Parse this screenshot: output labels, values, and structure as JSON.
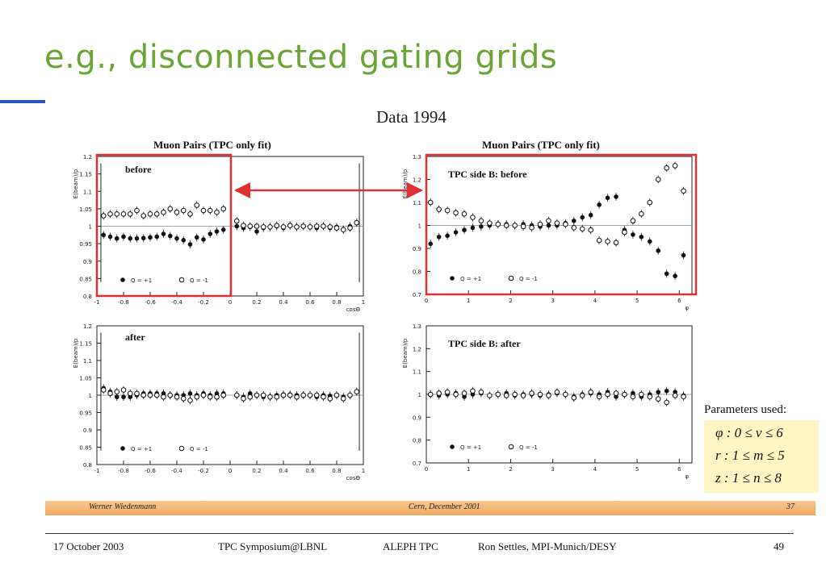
{
  "slide": {
    "title": "e.g., disconnected gating grids",
    "subtitle": "Data 1994"
  },
  "panels": {
    "tl": {
      "title": "Muon Pairs (TPC only fit)",
      "label": "before",
      "ylabel": "E(beam)/p",
      "xlabel": "cosΘ",
      "yticks": [
        "0.8",
        "0.85",
        "0.9",
        "0.95",
        "1",
        "1.05",
        "1.1",
        "1.15",
        "1.2"
      ],
      "xticks": [
        "-1",
        "-0.8",
        "-0.6",
        "-0.4",
        "-0.2",
        "0",
        "0.2",
        "0.4",
        "0.6",
        "0.8",
        "1"
      ],
      "legend_pos": "Q = +1",
      "legend_neg": "Q = -1"
    },
    "tr": {
      "title": "Muon Pairs (TPC only fit)",
      "label": "TPC side B: before",
      "ylabel": "E(beam)/p",
      "xlabel": "φ",
      "yticks": [
        "0.7",
        "0.8",
        "0.9",
        "1",
        "1.1",
        "1.2",
        "1.3"
      ],
      "xticks": [
        "0",
        "1",
        "2",
        "3",
        "4",
        "5",
        "6"
      ],
      "legend_pos": "Q = +1",
      "legend_neg": "Q = -1"
    },
    "bl": {
      "label": "after",
      "ylabel": "E(beam)/p",
      "xlabel": "cosΘ",
      "yticks": [
        "0.8",
        "0.85",
        "0.9",
        "0.95",
        "1",
        "1.05",
        "1.1",
        "1.15",
        "1.2"
      ],
      "xticks": [
        "-1",
        "-0.8",
        "-0.6",
        "-0.4",
        "-0.2",
        "0",
        "0.2",
        "0.4",
        "0.6",
        "0.8",
        "1"
      ],
      "legend_pos": "Q = +1",
      "legend_neg": "Q = -1"
    },
    "br": {
      "label": "TPC side B: after",
      "ylabel": "E(beam)/p",
      "xlabel": "φ",
      "yticks": [
        "0.7",
        "0.8",
        "0.9",
        "1",
        "1.1",
        "1.2",
        "1.3"
      ],
      "xticks": [
        "0",
        "1",
        "2",
        "3",
        "4",
        "5",
        "6"
      ],
      "legend_pos": "Q = +1",
      "legend_neg": "Q = -1"
    }
  },
  "params": {
    "title": "Parameters used:",
    "phi": "φ :  0 ≤ ν ≤ 6",
    "r": "r :  1 ≤ m ≤ 5",
    "z": "z :  1 ≤ n ≤ 8"
  },
  "band": {
    "left": "Werner Wiedenmann",
    "center": "Cern, December 2001",
    "right": "37"
  },
  "footer": {
    "date": "17 October 2003",
    "event": "TPC Symposium@LBNL",
    "project": "ALEPH TPC",
    "author": "Ron Settles, MPI-Munich/DESY",
    "page": "49"
  },
  "colors": {
    "title": "#6aa535",
    "highlight": "#e03030",
    "accent": "#2a56c6"
  },
  "chart_data": [
    {
      "type": "scatter",
      "id": "tl",
      "xlim": [
        -1,
        1
      ],
      "ylim": [
        0.8,
        1.2
      ],
      "series": [
        {
          "name": "Q = +1",
          "marker": "filled",
          "x": [
            -0.95,
            -0.9,
            -0.85,
            -0.8,
            -0.75,
            -0.7,
            -0.65,
            -0.6,
            -0.55,
            -0.5,
            -0.45,
            -0.4,
            -0.35,
            -0.3,
            -0.25,
            -0.2,
            -0.15,
            -0.1,
            -0.05,
            0.05,
            0.1,
            0.15,
            0.2,
            0.25,
            0.3,
            0.35,
            0.4,
            0.45,
            0.5,
            0.55,
            0.6,
            0.65,
            0.7,
            0.75,
            0.8,
            0.85,
            0.9,
            0.95
          ],
          "y": [
            0.975,
            0.97,
            0.965,
            0.97,
            0.965,
            0.965,
            0.966,
            0.968,
            0.97,
            0.978,
            0.972,
            0.965,
            0.96,
            0.948,
            0.968,
            0.962,
            0.978,
            0.985,
            0.99,
            1.0,
            0.995,
            0.998,
            0.985,
            0.995,
            0.998,
            1.0,
            0.995,
            1.002,
            0.998,
            1.0,
            0.998,
            0.995,
            1.0,
            0.995,
            0.998,
            0.99,
            1.0,
            1.01
          ]
        },
        {
          "name": "Q = -1",
          "marker": "open",
          "x": [
            -0.95,
            -0.9,
            -0.85,
            -0.8,
            -0.75,
            -0.7,
            -0.65,
            -0.6,
            -0.55,
            -0.5,
            -0.45,
            -0.4,
            -0.35,
            -0.3,
            -0.25,
            -0.2,
            -0.15,
            -0.1,
            -0.05,
            0.05,
            0.1,
            0.15,
            0.2,
            0.25,
            0.3,
            0.35,
            0.4,
            0.45,
            0.5,
            0.55,
            0.6,
            0.65,
            0.7,
            0.75,
            0.8,
            0.85,
            0.9,
            0.95
          ],
          "y": [
            1.03,
            1.035,
            1.035,
            1.035,
            1.035,
            1.045,
            1.03,
            1.035,
            1.035,
            1.04,
            1.05,
            1.04,
            1.045,
            1.035,
            1.06,
            1.045,
            1.045,
            1.04,
            1.05,
            1.015,
            1.002,
            1.0,
            1.0,
            0.998,
            0.998,
            1.002,
            0.998,
            1.002,
            0.998,
            1.0,
            0.998,
            1.0,
            1.0,
            0.998,
            0.995,
            0.99,
            0.995,
            1.01
          ]
        }
      ]
    },
    {
      "type": "scatter",
      "id": "tr",
      "xlim": [
        0,
        6.3
      ],
      "ylim": [
        0.7,
        1.3
      ],
      "series": [
        {
          "name": "Q = +1",
          "marker": "filled",
          "x": [
            0.1,
            0.3,
            0.5,
            0.7,
            0.9,
            1.1,
            1.3,
            1.5,
            1.7,
            1.9,
            2.1,
            2.3,
            2.5,
            2.7,
            2.9,
            3.1,
            3.3,
            3.5,
            3.7,
            3.9,
            4.1,
            4.3,
            4.5,
            4.7,
            4.9,
            5.1,
            5.3,
            5.5,
            5.7,
            5.9,
            6.1
          ],
          "y": [
            0.92,
            0.95,
            0.955,
            0.97,
            0.98,
            0.99,
            0.995,
            1.0,
            1.005,
            1.005,
            1.0,
            1.005,
            1.0,
            0.995,
            1.0,
            1.0,
            1.01,
            1.02,
            1.035,
            1.045,
            1.09,
            1.12,
            1.125,
            0.98,
            0.96,
            0.95,
            0.93,
            0.89,
            0.79,
            0.78,
            0.87
          ]
        },
        {
          "name": "Q = -1",
          "marker": "open",
          "x": [
            0.1,
            0.3,
            0.5,
            0.7,
            0.9,
            1.1,
            1.3,
            1.5,
            1.7,
            1.9,
            2.1,
            2.3,
            2.5,
            2.7,
            2.9,
            3.1,
            3.3,
            3.5,
            3.7,
            3.9,
            4.1,
            4.3,
            4.5,
            4.7,
            4.9,
            5.1,
            5.3,
            5.5,
            5.7,
            5.9,
            6.1
          ],
          "y": [
            1.1,
            1.07,
            1.065,
            1.055,
            1.05,
            1.035,
            1.02,
            1.01,
            1.005,
            1.0,
            1.0,
            0.995,
            0.99,
            1.005,
            1.02,
            1.01,
            1.005,
            0.99,
            0.985,
            0.98,
            0.935,
            0.93,
            0.925,
            0.97,
            1.02,
            1.05,
            1.1,
            1.2,
            1.25,
            1.26,
            1.15
          ]
        }
      ]
    },
    {
      "type": "scatter",
      "id": "bl",
      "xlim": [
        -1,
        1
      ],
      "ylim": [
        0.8,
        1.2
      ],
      "series": [
        {
          "name": "Q = +1",
          "marker": "filled",
          "x": [
            -0.95,
            -0.9,
            -0.85,
            -0.8,
            -0.75,
            -0.7,
            -0.65,
            -0.6,
            -0.55,
            -0.5,
            -0.45,
            -0.4,
            -0.35,
            -0.3,
            -0.25,
            -0.2,
            -0.15,
            -0.1,
            -0.05,
            0.05,
            0.1,
            0.15,
            0.2,
            0.25,
            0.3,
            0.35,
            0.4,
            0.45,
            0.5,
            0.55,
            0.6,
            0.65,
            0.7,
            0.75,
            0.8,
            0.85,
            0.9,
            0.95
          ],
          "y": [
            1.02,
            1.01,
            0.995,
            0.995,
            0.995,
            1.0,
            1.005,
            1.005,
            1.005,
            1.005,
            1.0,
            1.0,
            1.0,
            1.005,
            1.0,
            1.005,
            1.0,
            1.005,
            1.005,
            1.0,
            0.995,
            1.005,
            1.0,
            0.995,
            0.995,
            1.0,
            1.002,
            1.002,
            1.0,
            1.0,
            1.0,
            0.995,
            1.0,
            0.998,
            1.0,
            0.995,
            1.0,
            1.01
          ]
        },
        {
          "name": "Q = -1",
          "marker": "open",
          "x": [
            -0.95,
            -0.9,
            -0.85,
            -0.8,
            -0.75,
            -0.7,
            -0.65,
            -0.6,
            -0.55,
            -0.5,
            -0.45,
            -0.4,
            -0.35,
            -0.3,
            -0.25,
            -0.2,
            -0.15,
            -0.1,
            -0.05,
            0.05,
            0.1,
            0.15,
            0.2,
            0.25,
            0.3,
            0.35,
            0.4,
            0.45,
            0.5,
            0.55,
            0.6,
            0.65,
            0.7,
            0.75,
            0.8,
            0.85,
            0.9,
            0.95
          ],
          "y": [
            1.015,
            1.005,
            1.01,
            1.015,
            1.005,
            1.005,
            1.0,
            1.0,
            1.0,
            0.995,
            1.0,
            0.995,
            0.99,
            0.985,
            0.995,
            1.0,
            0.995,
            0.995,
            1.0,
            1.0,
            0.99,
            0.995,
            1.0,
            1.0,
            0.995,
            0.995,
            1.0,
            1.0,
            0.995,
            1.0,
            1.0,
            1.0,
            0.995,
            0.99,
            1.0,
            0.99,
            1.0,
            1.01
          ]
        }
      ]
    },
    {
      "type": "scatter",
      "id": "br",
      "xlim": [
        0,
        6.3
      ],
      "ylim": [
        0.7,
        1.3
      ],
      "series": [
        {
          "name": "Q = +1",
          "marker": "filled",
          "x": [
            0.1,
            0.3,
            0.5,
            0.7,
            0.9,
            1.1,
            1.3,
            1.5,
            1.7,
            1.9,
            2.1,
            2.3,
            2.5,
            2.7,
            2.9,
            3.1,
            3.3,
            3.5,
            3.7,
            3.9,
            4.1,
            4.3,
            4.5,
            4.7,
            4.9,
            5.1,
            5.3,
            5.5,
            5.7,
            5.9,
            6.1
          ],
          "y": [
            1.0,
            0.995,
            1.0,
            1.005,
            0.99,
            1.0,
            1.005,
            0.995,
            1.0,
            1.005,
            0.995,
            1.0,
            1.0,
            0.995,
            1.0,
            1.005,
            1.0,
            0.99,
            1.0,
            1.005,
            1.0,
            1.01,
            0.99,
            1.0,
            1.005,
            0.99,
            1.0,
            1.01,
            1.015,
            1.01,
            0.995
          ]
        },
        {
          "name": "Q = -1",
          "marker": "open",
          "x": [
            0.1,
            0.3,
            0.5,
            0.7,
            0.9,
            1.1,
            1.3,
            1.5,
            1.7,
            1.9,
            2.1,
            2.3,
            2.5,
            2.7,
            2.9,
            3.1,
            3.3,
            3.5,
            3.7,
            3.9,
            4.1,
            4.3,
            4.5,
            4.7,
            4.9,
            5.1,
            5.3,
            5.5,
            5.7,
            5.9,
            6.1
          ],
          "y": [
            1.0,
            1.005,
            1.01,
            1.0,
            1.005,
            1.015,
            1.01,
            0.995,
            1.0,
            0.995,
            1.0,
            0.995,
            1.005,
            1.0,
            0.995,
            1.01,
            1.0,
            0.985,
            0.995,
            1.01,
            0.99,
            1.0,
            1.005,
            1.0,
            0.99,
            1.0,
            0.99,
            0.98,
            0.965,
            0.995,
            0.99
          ]
        }
      ]
    }
  ]
}
